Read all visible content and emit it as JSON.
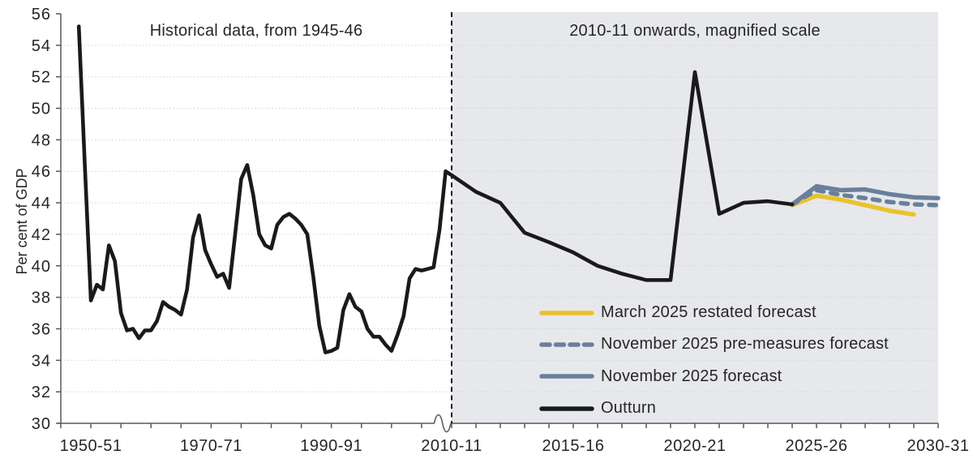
{
  "chart_data": {
    "type": "line",
    "title_left": "Historical data, from 1945-46",
    "title_right": "2010-11 onwards, magnified scale",
    "ylabel": "Per cent of GDP",
    "ylim": [
      30,
      56
    ],
    "yticks": [
      30,
      32,
      34,
      36,
      38,
      40,
      42,
      44,
      46,
      48,
      50,
      52,
      54,
      56
    ],
    "x_axis": {
      "historical_labels": [
        {
          "year": 1950,
          "label": "1950-51"
        },
        {
          "year": 1970,
          "label": "1970-71"
        },
        {
          "year": 1990,
          "label": "1990-91"
        }
      ],
      "boundary_label": {
        "year": 2010,
        "label": "2010-11"
      },
      "magnified_labels": [
        {
          "year": 2015,
          "label": "2015-16"
        },
        {
          "year": 2020,
          "label": "2020-21"
        },
        {
          "year": 2025,
          "label": "2025-26"
        },
        {
          "year": 2030,
          "label": "2030-31"
        }
      ]
    },
    "colors": {
      "outturn": "#1a1a1a",
      "march_forecast": "#e9c32b",
      "november_forecast": "#68809b",
      "magnified_panel": "#e7e8ec",
      "gridline": "#d4d4d8",
      "axis": "#595959",
      "text": "#262626",
      "boundary_line": "#111111"
    },
    "series": [
      {
        "name": "Outturn",
        "color": "#1a1a1a",
        "style": "solid",
        "scale": "historical+magnified",
        "historical_points": [
          [
            1948,
            55.2
          ],
          [
            1949,
            46.3
          ],
          [
            1950,
            37.8
          ],
          [
            1951,
            38.8
          ],
          [
            1952,
            38.5
          ],
          [
            1953,
            41.3
          ],
          [
            1954,
            40.3
          ],
          [
            1955,
            37.0
          ],
          [
            1956,
            35.9
          ],
          [
            1957,
            36.0
          ],
          [
            1958,
            35.4
          ],
          [
            1959,
            35.9
          ],
          [
            1960,
            35.9
          ],
          [
            1961,
            36.5
          ],
          [
            1962,
            37.7
          ],
          [
            1963,
            37.4
          ],
          [
            1964,
            37.2
          ],
          [
            1965,
            36.9
          ],
          [
            1966,
            38.5
          ],
          [
            1967,
            41.8
          ],
          [
            1968,
            43.2
          ],
          [
            1969,
            41.0
          ],
          [
            1970,
            40.1
          ],
          [
            1971,
            39.3
          ],
          [
            1972,
            39.5
          ],
          [
            1973,
            38.6
          ],
          [
            1974,
            42.0
          ],
          [
            1975,
            45.5
          ],
          [
            1976,
            46.4
          ],
          [
            1977,
            44.5
          ],
          [
            1978,
            42.0
          ],
          [
            1979,
            41.3
          ],
          [
            1980,
            41.1
          ],
          [
            1981,
            42.6
          ],
          [
            1982,
            43.1
          ],
          [
            1983,
            43.3
          ],
          [
            1984,
            43.0
          ],
          [
            1985,
            42.6
          ],
          [
            1986,
            42.0
          ],
          [
            1987,
            39.3
          ],
          [
            1988,
            36.2
          ],
          [
            1989,
            34.5
          ],
          [
            1990,
            34.6
          ],
          [
            1991,
            34.8
          ],
          [
            1992,
            37.2
          ],
          [
            1993,
            38.2
          ],
          [
            1994,
            37.4
          ],
          [
            1995,
            37.1
          ],
          [
            1996,
            36.0
          ],
          [
            1997,
            35.5
          ],
          [
            1998,
            35.5
          ],
          [
            1999,
            35.0
          ],
          [
            2000,
            34.6
          ],
          [
            2001,
            35.6
          ],
          [
            2002,
            36.8
          ],
          [
            2003,
            39.2
          ],
          [
            2004,
            39.8
          ],
          [
            2005,
            39.7
          ],
          [
            2006,
            39.8
          ],
          [
            2007,
            39.9
          ],
          [
            2008,
            42.3
          ],
          [
            2009,
            46.0
          ]
        ],
        "magnified_points": [
          [
            2010,
            45.75
          ],
          [
            2011,
            44.7
          ],
          [
            2012,
            44.0
          ],
          [
            2013,
            42.1
          ],
          [
            2014,
            41.5
          ],
          [
            2015,
            40.85
          ],
          [
            2016,
            40.0
          ],
          [
            2017,
            39.5
          ],
          [
            2018,
            39.1
          ],
          [
            2019,
            39.1
          ],
          [
            2020,
            52.3
          ],
          [
            2021,
            43.3
          ],
          [
            2022,
            44.0
          ],
          [
            2023,
            44.1
          ],
          [
            2024,
            43.9
          ]
        ]
      },
      {
        "name": "March 2025 restated forecast",
        "color": "#e9c32b",
        "style": "solid",
        "scale": "magnified",
        "points": [
          [
            2024,
            43.85
          ],
          [
            2025,
            44.45
          ],
          [
            2026,
            44.2
          ],
          [
            2027,
            43.85
          ],
          [
            2028,
            43.5
          ],
          [
            2029,
            43.25
          ]
        ]
      },
      {
        "name": "November 2025 pre-measures forecast",
        "color": "#68809b",
        "style": "dashed",
        "scale": "magnified",
        "points": [
          [
            2024,
            43.9
          ],
          [
            2025,
            44.8
          ],
          [
            2026,
            44.5
          ],
          [
            2027,
            44.3
          ],
          [
            2028,
            44.05
          ],
          [
            2029,
            43.9
          ],
          [
            2030,
            43.85
          ]
        ]
      },
      {
        "name": "November 2025 forecast",
        "color": "#68809b",
        "style": "solid",
        "scale": "magnified",
        "points": [
          [
            2024,
            43.9
          ],
          [
            2025,
            45.05
          ],
          [
            2026,
            44.8
          ],
          [
            2027,
            44.85
          ],
          [
            2028,
            44.55
          ],
          [
            2029,
            44.35
          ],
          [
            2030,
            44.3
          ]
        ]
      }
    ]
  },
  "legend": [
    {
      "label": "March 2025 restated forecast",
      "color": "#e9c32b",
      "dash": false
    },
    {
      "label": "November 2025 pre-measures forecast",
      "color": "#68809b",
      "dash": true
    },
    {
      "label": "November 2025 forecast",
      "color": "#68809b",
      "dash": false
    },
    {
      "label": "Outturn",
      "color": "#1a1a1a",
      "dash": false
    }
  ]
}
